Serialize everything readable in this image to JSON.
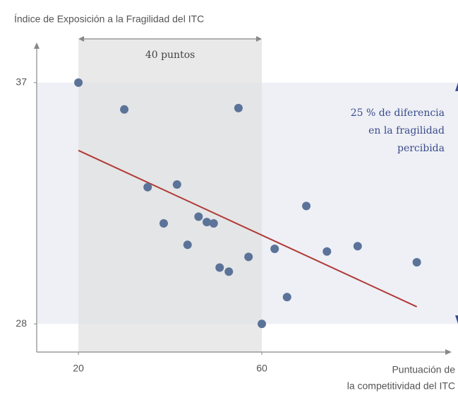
{
  "chart_data": {
    "type": "scatter",
    "title": "Índice de Exposición a la Fragilidad del ITC",
    "x_label": [
      "Puntuación de",
      "la competitividad del ITC"
    ],
    "span_label": "40 puntos",
    "annotation": [
      "25 % de diferencia",
      "en la fragilidad",
      "percibida"
    ],
    "x": [
      20,
      30,
      35.1,
      41.5,
      38.6,
      43.8,
      46.2,
      48.0,
      49.5,
      50.8,
      52.8,
      54.9,
      57.1,
      60,
      62.8,
      65.5,
      69.7,
      74.2,
      80.9,
      93.8
    ],
    "values": [
      37,
      36.0,
      33.1,
      33.2,
      31.75,
      30.95,
      32.0,
      31.8,
      31.75,
      30.1,
      29.95,
      36.05,
      30.5,
      28,
      30.8,
      29.0,
      32.4,
      30.7,
      30.9,
      30.3
    ],
    "trend": {
      "x": [
        20,
        93.8
      ],
      "values": [
        34.47,
        28.64
      ],
      "color": "#b03a36"
    },
    "highlight_x": [
      20,
      60
    ],
    "highlight_y": [
      28,
      37
    ],
    "color": "#5b7399",
    "xlim": [
      10.9,
      101.4
    ],
    "ylim": [
      26.95,
      38.5
    ],
    "xticks": [
      20,
      60
    ],
    "yticks": [
      28,
      37
    ]
  }
}
